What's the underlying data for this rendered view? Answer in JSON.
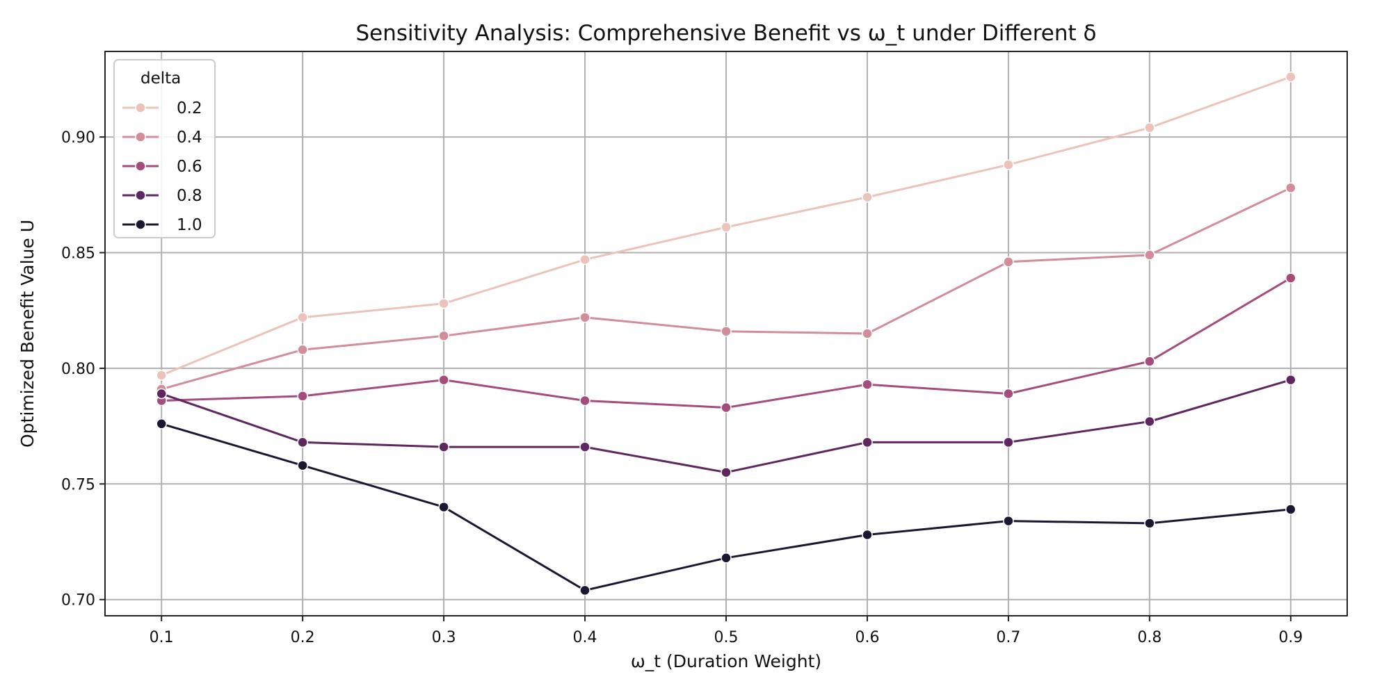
{
  "chart_data": {
    "type": "line",
    "title": "Sensitivity Analysis: Comprehensive Benefit vs ω_t under Different δ",
    "xlabel": "ω_t (Duration Weight)",
    "ylabel": "Optimized Benefit Value U",
    "x": [
      0.1,
      0.2,
      0.3,
      0.4,
      0.5,
      0.6,
      0.7,
      0.8,
      0.9
    ],
    "x_tick_labels": [
      "0.1",
      "0.2",
      "0.3",
      "0.4",
      "0.5",
      "0.6",
      "0.7",
      "0.8",
      "0.9"
    ],
    "xlim": [
      0.06,
      0.94
    ],
    "y_ticks": [
      0.7,
      0.75,
      0.8,
      0.85,
      0.9
    ],
    "y_tick_labels": [
      "0.70",
      "0.75",
      "0.80",
      "0.85",
      "0.90"
    ],
    "ylim": [
      0.693,
      0.937
    ],
    "grid": true,
    "legend": {
      "title": "delta",
      "position": "top-left"
    },
    "series": [
      {
        "name": "0.2",
        "color": "#ebc3ba",
        "values": [
          0.797,
          0.822,
          0.828,
          0.847,
          0.861,
          0.874,
          0.888,
          0.904,
          0.926
        ]
      },
      {
        "name": "0.4",
        "color": "#d28d9a",
        "values": [
          0.791,
          0.808,
          0.814,
          0.822,
          0.816,
          0.815,
          0.846,
          0.849,
          0.878
        ]
      },
      {
        "name": "0.6",
        "color": "#a44d7d",
        "values": [
          0.786,
          0.788,
          0.795,
          0.786,
          0.783,
          0.793,
          0.789,
          0.803,
          0.839
        ]
      },
      {
        "name": "0.8",
        "color": "#5e2760",
        "values": [
          0.789,
          0.768,
          0.766,
          0.766,
          0.755,
          0.768,
          0.768,
          0.777,
          0.795
        ]
      },
      {
        "name": "1.0",
        "color": "#1c1731",
        "values": [
          0.776,
          0.758,
          0.74,
          0.704,
          0.718,
          0.728,
          0.734,
          0.733,
          0.739
        ]
      }
    ]
  }
}
